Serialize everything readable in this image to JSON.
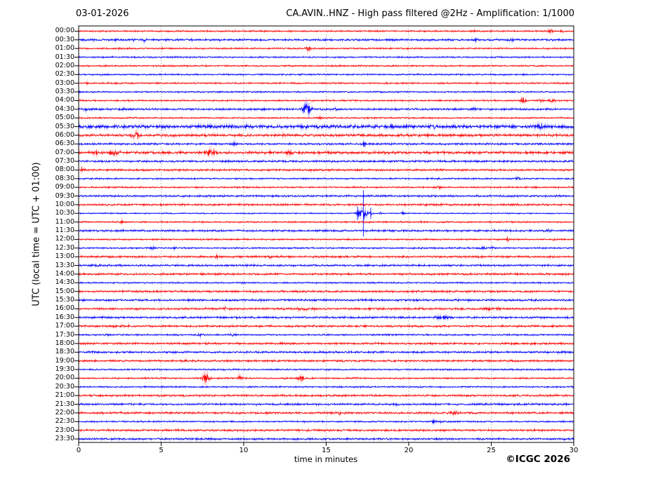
{
  "header": {
    "date": "03-01-2026",
    "title": "CA.AVIN..HNZ - High pass filtered @2Hz - Amplification: 1/1000"
  },
  "footer": {
    "copyright": "©ICGC 2026"
  },
  "chart_data": {
    "type": "line",
    "subtype": "helicorder-dayplot",
    "title": "CA.AVIN..HNZ - High pass filtered @2Hz - Amplification: 1/1000",
    "date_label": "03-01-2026",
    "xlabel": "time in minutes",
    "ylabel": "UTC (local time = UTC + 01:00)",
    "xlim": [
      0,
      30
    ],
    "x_ticks": [
      0,
      5,
      10,
      15,
      20,
      25,
      30
    ],
    "grid": "vertical-dotted-every-5-min",
    "minutes_per_row": 30,
    "trace_colors": {
      "red": "#ff0000",
      "blue": "#0000ff"
    },
    "rows": [
      {
        "t": "00:00",
        "c": "red",
        "n": 1,
        "e": [
          {
            "m": 24.0,
            "w": 0.2,
            "a": 0.7
          },
          {
            "m": 28.6,
            "w": 0.35,
            "a": 1.2
          },
          {
            "m": 29.3,
            "w": 0.2,
            "a": 0.8
          }
        ]
      },
      {
        "t": "00:30",
        "c": "blue",
        "n": 2,
        "e": [
          {
            "m": 3.35,
            "w": 0.2,
            "a": 1.1
          },
          {
            "m": 3.95,
            "w": 0.25,
            "a": 1.5
          },
          {
            "m": 17.0,
            "w": 0.2,
            "a": 0.7
          },
          {
            "m": 24.1,
            "w": 0.3,
            "a": 0.9
          },
          {
            "m": 26.2,
            "w": 0.3,
            "a": 1.3
          }
        ]
      },
      {
        "t": "01:00",
        "c": "red",
        "n": 1,
        "e": [
          {
            "m": 2.5,
            "w": 0.2,
            "a": 1.1
          },
          {
            "m": 13.9,
            "w": 0.35,
            "a": 2.4
          }
        ]
      },
      {
        "t": "01:30",
        "c": "blue",
        "n": 1,
        "e": []
      },
      {
        "t": "02:00",
        "c": "red",
        "n": 1,
        "e": []
      },
      {
        "t": "02:30",
        "c": "blue",
        "n": 1,
        "e": []
      },
      {
        "t": "03:00",
        "c": "red",
        "n": 1,
        "e": [
          {
            "m": 0.5,
            "w": 0.2,
            "a": 0.9
          }
        ]
      },
      {
        "t": "03:30",
        "c": "blue",
        "n": 1,
        "e": []
      },
      {
        "t": "04:00",
        "c": "red",
        "n": 1,
        "e": [
          {
            "m": 26.9,
            "w": 0.35,
            "a": 2.4
          },
          {
            "m": 28.0,
            "w": 0.3,
            "a": 1.2
          },
          {
            "m": 28.7,
            "w": 0.35,
            "a": 1.7
          }
        ]
      },
      {
        "t": "04:30",
        "c": "blue",
        "n": 2,
        "e": [
          {
            "m": 0.4,
            "w": 0.3,
            "a": 1.1
          },
          {
            "m": 2.7,
            "w": 0.25,
            "a": 1.1
          },
          {
            "m": 13.85,
            "w": 0.5,
            "a": 7.0
          },
          {
            "m": 15.6,
            "w": 0.2,
            "a": 1.2
          },
          {
            "m": 24.0,
            "w": 0.3,
            "a": 1.0
          }
        ]
      },
      {
        "t": "05:00",
        "c": "red",
        "n": 1,
        "e": [
          {
            "m": 14.6,
            "w": 0.3,
            "a": 0.8
          }
        ]
      },
      {
        "t": "05:30",
        "c": "blue",
        "n": 4,
        "e": [
          {
            "m": 19.0,
            "w": 0.3,
            "a": 1.0
          },
          {
            "m": 21.5,
            "w": 0.3,
            "a": 1.0
          },
          {
            "m": 28.0,
            "w": 0.4,
            "a": 1.6
          }
        ]
      },
      {
        "t": "06:00",
        "c": "red",
        "n": 3,
        "e": [
          {
            "m": 3.45,
            "w": 0.5,
            "a": 3.0
          },
          {
            "m": 12.5,
            "w": 0.3,
            "a": 1.0
          }
        ]
      },
      {
        "t": "06:30",
        "c": "blue",
        "n": 2,
        "e": [
          {
            "m": 9.4,
            "w": 0.3,
            "a": 1.4
          },
          {
            "m": 17.3,
            "w": 0.25,
            "a": 1.6
          }
        ]
      },
      {
        "t": "07:00",
        "c": "red",
        "n": 3,
        "e": [
          {
            "m": 1.1,
            "w": 0.3,
            "a": 1.3
          },
          {
            "m": 2.2,
            "w": 0.6,
            "a": 1.6
          },
          {
            "m": 8.0,
            "w": 0.5,
            "a": 2.8
          },
          {
            "m": 12.8,
            "w": 0.4,
            "a": 1.3
          }
        ]
      },
      {
        "t": "07:30",
        "c": "blue",
        "n": 2,
        "e": []
      },
      {
        "t": "08:00",
        "c": "red",
        "n": 2,
        "e": [
          {
            "m": 0.25,
            "w": 0.25,
            "a": 2.4
          }
        ]
      },
      {
        "t": "08:30",
        "c": "blue",
        "n": 1,
        "e": [
          {
            "m": 26.6,
            "w": 0.25,
            "a": 1.1
          }
        ]
      },
      {
        "t": "09:00",
        "c": "red",
        "n": 1,
        "e": [
          {
            "m": 21.8,
            "w": 0.25,
            "a": 1.2
          }
        ]
      },
      {
        "t": "09:30",
        "c": "blue",
        "n": 2,
        "e": []
      },
      {
        "t": "10:00",
        "c": "red",
        "n": 2,
        "e": []
      },
      {
        "t": "10:30",
        "c": "blue",
        "n": 0,
        "e": [
          {
            "m": 16.9,
            "w": 0.25,
            "a": 2.5,
            "s": 10
          },
          {
            "m": 17.25,
            "w": 0.5,
            "a": 5.5,
            "s": 33
          },
          {
            "m": 17.7,
            "w": 0.2,
            "a": 2.0,
            "s": 8
          },
          {
            "m": 18.3,
            "w": 0.15,
            "a": 1.2
          },
          {
            "m": 19.6,
            "w": 0.25,
            "a": 1.3
          }
        ]
      },
      {
        "t": "11:00",
        "c": "red",
        "n": 1,
        "e": [
          {
            "m": 2.6,
            "w": 0.25,
            "a": 1.3
          }
        ]
      },
      {
        "t": "11:30",
        "c": "blue",
        "n": 2,
        "e": [
          {
            "m": 28.4,
            "w": 0.35,
            "a": 1.1
          }
        ]
      },
      {
        "t": "12:00",
        "c": "red",
        "n": 1,
        "e": [
          {
            "m": 26.0,
            "w": 0.15,
            "a": 2.2
          },
          {
            "m": 28.8,
            "w": 0.12,
            "a": 1.2
          }
        ]
      },
      {
        "t": "12:30",
        "c": "blue",
        "n": 1,
        "e": [
          {
            "m": 4.5,
            "w": 0.25,
            "a": 1.0
          },
          {
            "m": 5.8,
            "w": 0.2,
            "a": 0.8
          },
          {
            "m": 24.5,
            "w": 0.4,
            "a": 1.1
          },
          {
            "m": 25.1,
            "w": 0.3,
            "a": 1.0
          }
        ]
      },
      {
        "t": "13:00",
        "c": "red",
        "n": 2,
        "e": [
          {
            "m": 8.35,
            "w": 0.3,
            "a": 1.2
          },
          {
            "m": 11.6,
            "w": 0.2,
            "a": 0.9
          }
        ]
      },
      {
        "t": "13:30",
        "c": "blue",
        "n": 2,
        "e": []
      },
      {
        "t": "14:00",
        "c": "red",
        "n": 2,
        "e": []
      },
      {
        "t": "14:30",
        "c": "blue",
        "n": 1,
        "e": []
      },
      {
        "t": "15:00",
        "c": "red",
        "n": 2,
        "e": []
      },
      {
        "t": "15:30",
        "c": "blue",
        "n": 2,
        "e": []
      },
      {
        "t": "16:00",
        "c": "red",
        "n": 2,
        "e": [
          {
            "m": 8.9,
            "w": 0.2,
            "a": 1.3
          },
          {
            "m": 13.35,
            "w": 0.25,
            "a": 1.4
          },
          {
            "m": 13.75,
            "w": 0.25,
            "a": 1.5
          },
          {
            "m": 14.3,
            "w": 0.15,
            "a": 1.0
          },
          {
            "m": 24.8,
            "w": 0.5,
            "a": 1.0
          },
          {
            "m": 25.4,
            "w": 0.3,
            "a": 0.9
          }
        ]
      },
      {
        "t": "16:30",
        "c": "blue",
        "n": 2,
        "e": [
          {
            "m": 21.8,
            "w": 0.4,
            "a": 0.9
          },
          {
            "m": 22.3,
            "w": 0.6,
            "a": 1.1
          }
        ]
      },
      {
        "t": "17:00",
        "c": "red",
        "n": 2,
        "e": [
          {
            "m": 3.0,
            "w": 0.15,
            "a": 0.8
          }
        ]
      },
      {
        "t": "17:30",
        "c": "blue",
        "n": 1,
        "e": [
          {
            "m": 1.7,
            "w": 0.2,
            "a": 0.8
          },
          {
            "m": 7.4,
            "w": 0.5,
            "a": 1.0
          },
          {
            "m": 9.3,
            "w": 0.4,
            "a": 0.9
          }
        ]
      },
      {
        "t": "18:00",
        "c": "red",
        "n": 2,
        "e": []
      },
      {
        "t": "18:30",
        "c": "blue",
        "n": 2,
        "e": []
      },
      {
        "t": "19:00",
        "c": "red",
        "n": 2,
        "e": [
          {
            "m": 16.0,
            "w": 0.12,
            "a": 0.9
          }
        ]
      },
      {
        "t": "19:30",
        "c": "blue",
        "n": 1,
        "e": []
      },
      {
        "t": "20:00",
        "c": "red",
        "n": 1,
        "e": [
          {
            "m": 7.7,
            "w": 0.4,
            "a": 6.0
          },
          {
            "m": 9.75,
            "w": 0.25,
            "a": 1.9
          },
          {
            "m": 12.5,
            "w": 0.2,
            "a": 1.0
          },
          {
            "m": 13.45,
            "w": 0.4,
            "a": 3.0
          },
          {
            "m": 16.8,
            "w": 0.2,
            "a": 0.9
          },
          {
            "m": 27.0,
            "w": 0.2,
            "a": 0.8
          }
        ]
      },
      {
        "t": "20:30",
        "c": "blue",
        "n": 1,
        "e": []
      },
      {
        "t": "21:00",
        "c": "red",
        "n": 2,
        "e": []
      },
      {
        "t": "21:30",
        "c": "blue",
        "n": 2,
        "e": [
          {
            "m": 19.2,
            "w": 0.45,
            "a": 1.1
          }
        ]
      },
      {
        "t": "22:00",
        "c": "red",
        "n": 2,
        "e": [
          {
            "m": 15.8,
            "w": 0.15,
            "a": 1.4
          },
          {
            "m": 22.8,
            "w": 0.6,
            "a": 1.0
          }
        ]
      },
      {
        "t": "22:30",
        "c": "blue",
        "n": 1,
        "e": [
          {
            "m": 21.5,
            "w": 0.3,
            "a": 1.1
          },
          {
            "m": 22.0,
            "w": 0.3,
            "a": 1.2
          }
        ]
      },
      {
        "t": "23:00",
        "c": "red",
        "n": 2,
        "e": []
      },
      {
        "t": "23:30",
        "c": "blue",
        "n": 2,
        "e": []
      }
    ]
  }
}
